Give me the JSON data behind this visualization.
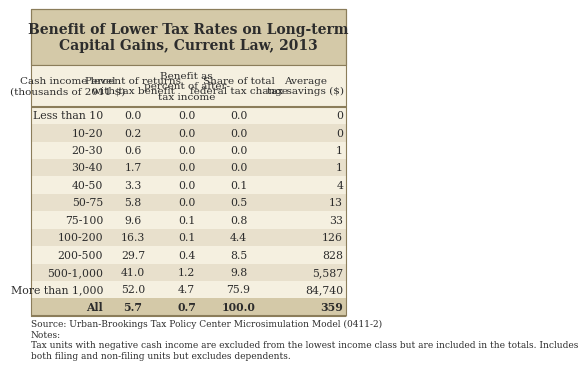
{
  "title": "Benefit of Lower Tax Rates on Long-term\nCapital Gains, Current Law, 2013",
  "col_headers": [
    "Cash income level\n(thousands of 2011 $)",
    "Percent of returns\nwith tax benefit",
    "Benefit as\npercent of after-\ntax income",
    "Share of total\nfederal tax change",
    "Average\ntax savings ($)"
  ],
  "rows": [
    [
      "Less than 10",
      "0.0",
      "0.0",
      "0.0",
      "0"
    ],
    [
      "10-20",
      "0.2",
      "0.0",
      "0.0",
      "0"
    ],
    [
      "20-30",
      "0.6",
      "0.0",
      "0.0",
      "1"
    ],
    [
      "30-40",
      "1.7",
      "0.0",
      "0.0",
      "1"
    ],
    [
      "40-50",
      "3.3",
      "0.0",
      "0.1",
      "4"
    ],
    [
      "50-75",
      "5.8",
      "0.0",
      "0.5",
      "13"
    ],
    [
      "75-100",
      "9.6",
      "0.1",
      "0.8",
      "33"
    ],
    [
      "100-200",
      "16.3",
      "0.1",
      "4.4",
      "126"
    ],
    [
      "200-500",
      "29.7",
      "0.4",
      "8.5",
      "828"
    ],
    [
      "500-1,000",
      "41.0",
      "1.2",
      "9.8",
      "5,587"
    ],
    [
      "More than 1,000",
      "52.0",
      "4.7",
      "75.9",
      "84,740"
    ],
    [
      "All",
      "5.7",
      "0.7",
      "100.0",
      "359"
    ]
  ],
  "source_text": "Source: Urban-Brookings Tax Policy Center Microsimulation Model (0411-2)\nNotes:\nTax units with negative cash income are excluded from the lowest income class but are included in the totals. Includes\nboth filing and non-filing units but excludes dependents.",
  "title_bg": "#d4c9a8",
  "header_bg": "#f5f0e0",
  "row_bg_odd": "#f5f0e0",
  "row_bg_even": "#e8e0cc",
  "all_row_bg": "#d4c9a8",
  "border_color": "#8b7d5a",
  "text_color": "#2c2c2c",
  "title_fontsize": 10,
  "header_fontsize": 7.5,
  "data_fontsize": 7.8,
  "source_fontsize": 6.5
}
